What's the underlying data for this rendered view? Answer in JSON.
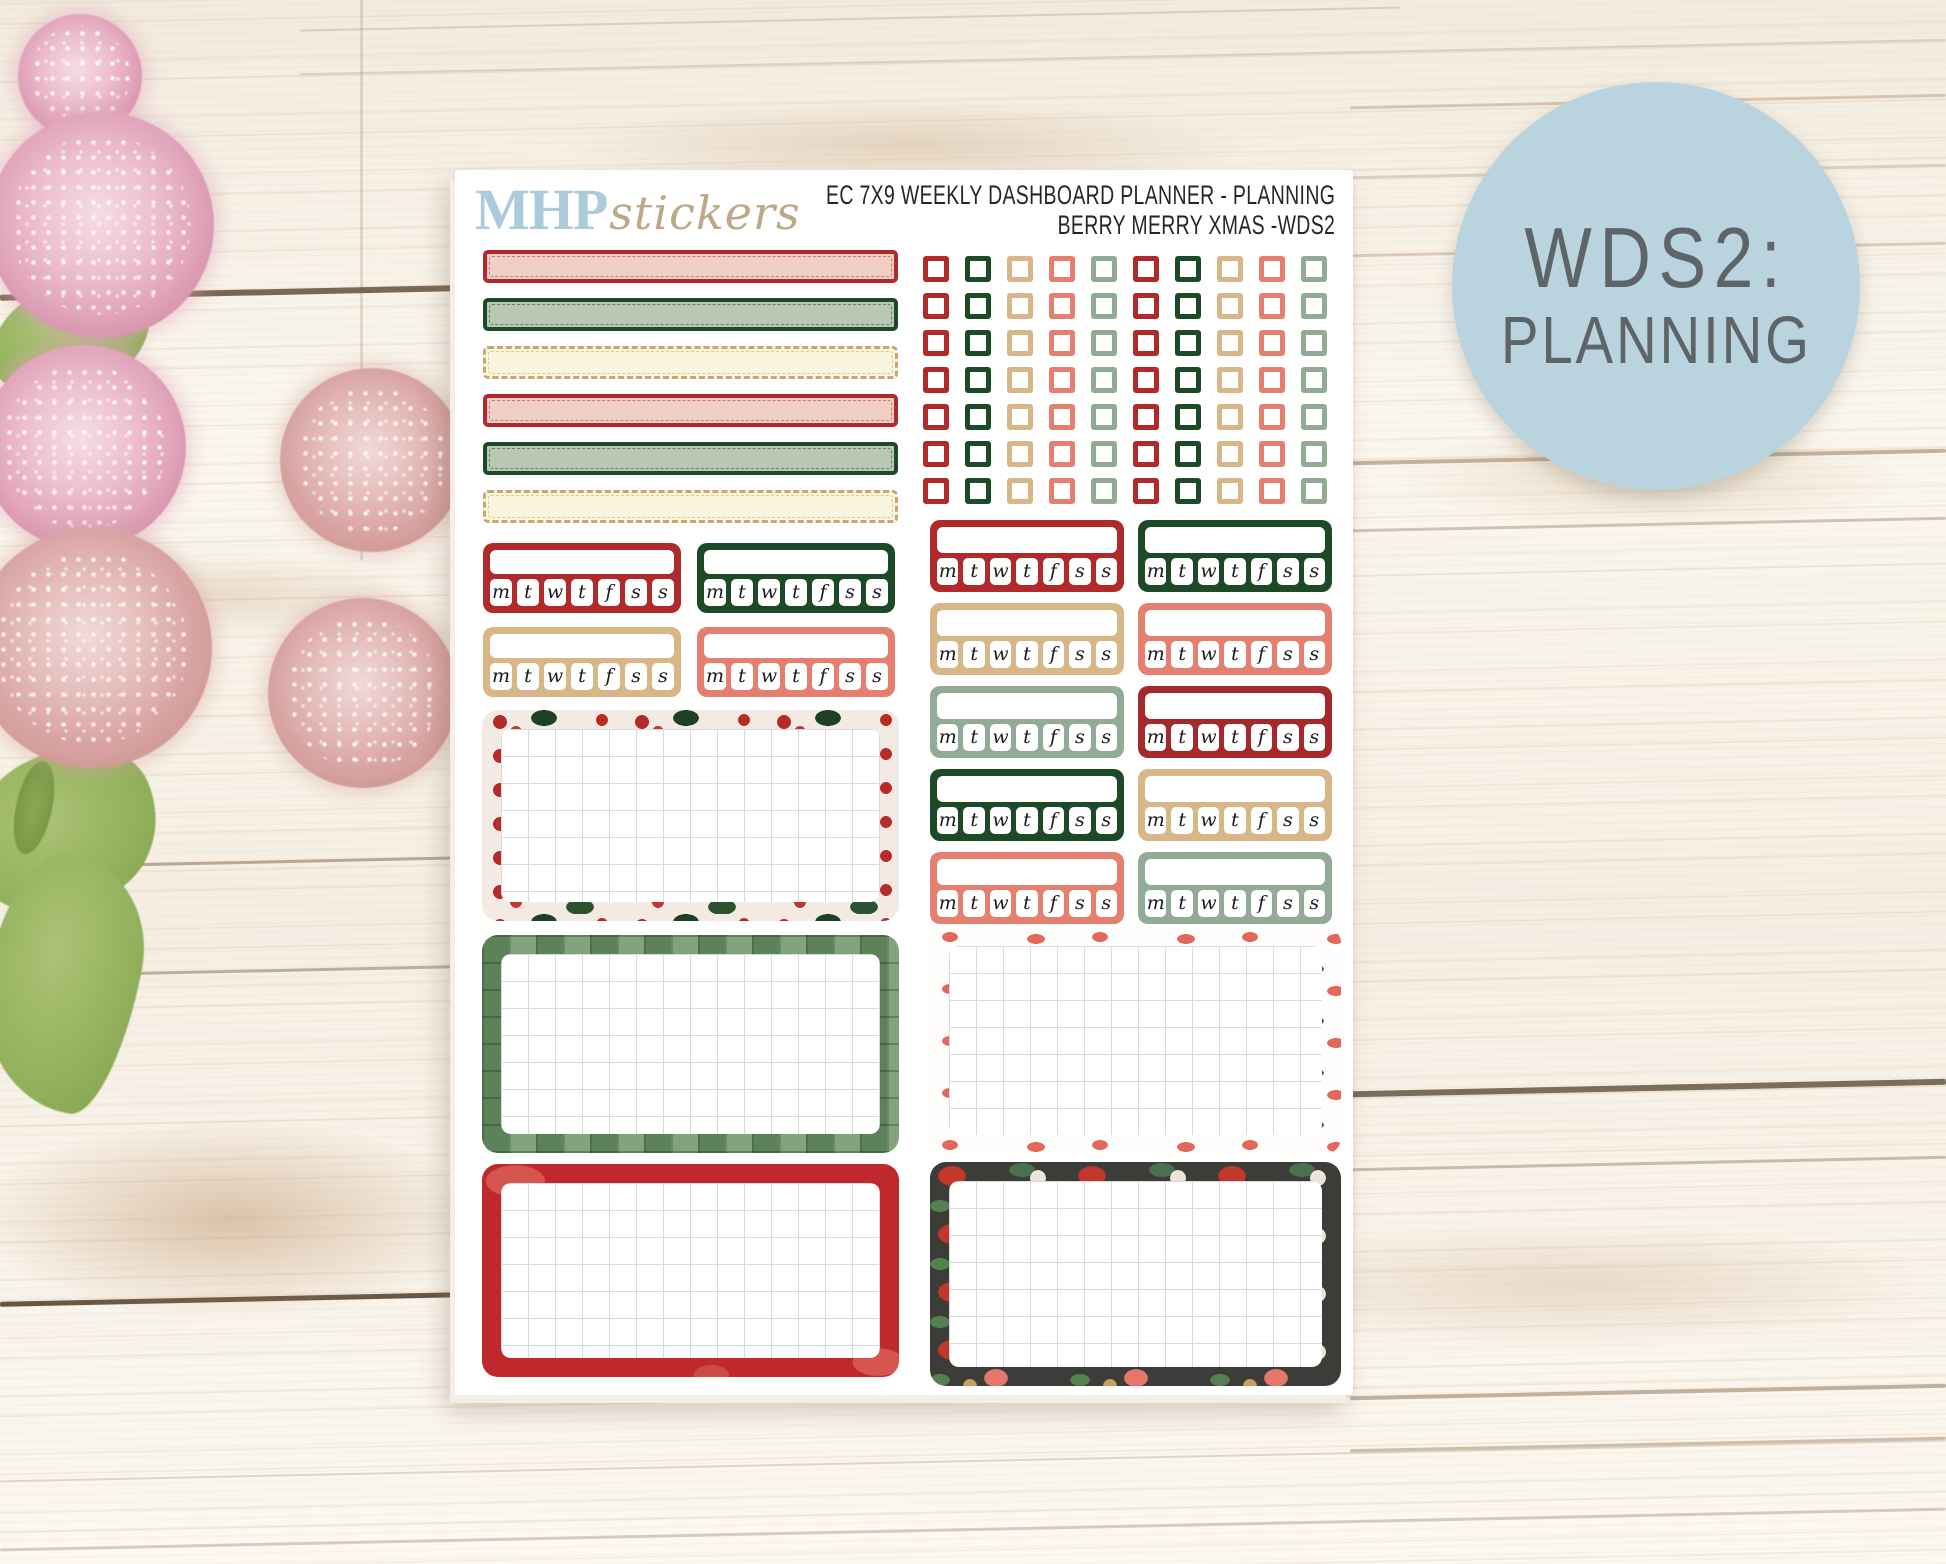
{
  "badge": {
    "line1": "WDS2:",
    "line2": "PLANNING",
    "bg": "#b9d4de",
    "text_color": "#5f6468"
  },
  "logo": {
    "part1": "MHP",
    "part2": "stickers",
    "part1_color": "#abcadb",
    "part2_color": "#bda98a"
  },
  "header": {
    "line1": "EC 7X9 WEEKLY DASHBOARD PLANNER - PLANNING",
    "line2": "BERRY MERRY XMAS -WDS2"
  },
  "palette": {
    "red": "#b02a2b",
    "crimson": "#a5292c",
    "dark_green": "#1d4a26",
    "tan": "#d7b787",
    "coral": "#e57f70",
    "sage": "#92ab97",
    "pink_fill": "#f2cfc6",
    "sage_fill": "#b9c7b3",
    "cream_fill": "#f9f4de",
    "tan_border": "#c9a76f"
  },
  "washi_strips": [
    {
      "name": "pink-stitched-strip",
      "fill": "pink_fill",
      "border": "red",
      "style": "solid"
    },
    {
      "name": "sage-stitched-strip",
      "fill": "sage_fill",
      "border": "dark_green",
      "style": "solid"
    },
    {
      "name": "cream-stitched-strip",
      "fill": "cream_fill",
      "border": "tan_border",
      "style": "dashed"
    },
    {
      "name": "pink-stitched-strip",
      "fill": "pink_fill",
      "border": "red",
      "style": "solid"
    },
    {
      "name": "sage-stitched-strip",
      "fill": "sage_fill",
      "border": "dark_green",
      "style": "solid"
    },
    {
      "name": "cream-stitched-strip",
      "fill": "cream_fill",
      "border": "tan_border",
      "style": "dashed"
    }
  ],
  "checkbox_grid": {
    "rows": 7,
    "columns": 10,
    "column_colors": [
      "red",
      "dark_green",
      "tan",
      "coral",
      "sage",
      "red",
      "dark_green",
      "tan",
      "coral",
      "sage"
    ]
  },
  "tracker_letters": [
    "m",
    "t",
    "w",
    "t",
    "f",
    "s",
    "s"
  ],
  "trackers_left": [
    [
      "red",
      "dark_green"
    ],
    [
      "tan",
      "coral"
    ]
  ],
  "trackers_right": [
    [
      "red",
      "dark_green"
    ],
    [
      "tan",
      "coral"
    ],
    [
      "sage",
      "crimson"
    ],
    [
      "dark_green",
      "tan"
    ],
    [
      "coral",
      "sage"
    ]
  ],
  "boxes_left": [
    {
      "style": "holly"
    },
    {
      "style": "plaid"
    },
    {
      "style": "red-solid"
    }
  ],
  "boxes_right": [
    {
      "style": "white-floral"
    },
    {
      "style": "dark-floral"
    }
  ]
}
